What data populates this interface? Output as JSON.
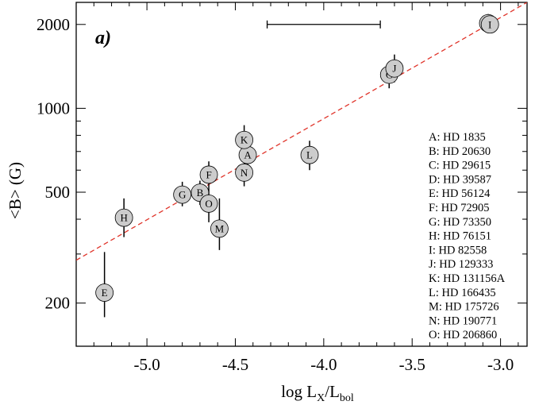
{
  "chart_data": {
    "type": "scatter",
    "title": "",
    "panel_label": "a)",
    "xlabel": {
      "main": "log L",
      "sub1": "X",
      "mid": "/L",
      "sub2": "bol"
    },
    "ylabel": "<B> (G)",
    "xlim": [
      -5.4,
      -2.85
    ],
    "ylim": [
      140,
      2400
    ],
    "yscale": "log",
    "x_ticks": [
      -5.0,
      -4.5,
      -4.0,
      -3.5,
      -3.0
    ],
    "x_tick_labels": [
      "-5.0",
      "-4.5",
      "-4.0",
      "-3.5",
      "-3.0"
    ],
    "y_ticks": [
      200,
      500,
      1000,
      2000
    ],
    "y_tick_labels": [
      "200",
      "500",
      "1000",
      "2000"
    ],
    "grid": false,
    "colors": {
      "points": "#cccccc",
      "fit": "#e0342a",
      "axes": "#000000"
    },
    "points": [
      {
        "id": "A",
        "x": -4.43,
        "y": 680,
        "yerr": [
          620,
          750
        ]
      },
      {
        "id": "B",
        "x": -4.7,
        "y": 498,
        "yerr": [
          450,
          550
        ]
      },
      {
        "id": "C",
        "x": -3.63,
        "y": 1320,
        "yerr": [
          1180,
          1460
        ]
      },
      {
        "id": "D",
        "x": -3.07,
        "y": 2020,
        "yerr": [
          1880,
          2180
        ]
      },
      {
        "id": "E",
        "x": -5.24,
        "y": 218,
        "yerr": [
          178,
          305
        ]
      },
      {
        "id": "F",
        "x": -4.65,
        "y": 578,
        "yerr": [
          520,
          645
        ]
      },
      {
        "id": "G",
        "x": -4.8,
        "y": 490,
        "yerr": [
          445,
          545
        ]
      },
      {
        "id": "H",
        "x": -5.13,
        "y": 405,
        "yerr": [
          345,
          475
        ]
      },
      {
        "id": "I",
        "x": -3.06,
        "y": 2000,
        "yerr": [
          1870,
          2140
        ]
      },
      {
        "id": "J",
        "x": -3.6,
        "y": 1390,
        "yerr": [
          1240,
          1560
        ]
      },
      {
        "id": "K",
        "x": -4.45,
        "y": 770,
        "yerr": [
          680,
          870
        ]
      },
      {
        "id": "L",
        "x": -4.08,
        "y": 680,
        "yerr": [
          600,
          765
        ]
      },
      {
        "id": "M",
        "x": -4.59,
        "y": 370,
        "yerr": [
          310,
          475
        ]
      },
      {
        "id": "N",
        "x": -4.45,
        "y": 588,
        "yerr": [
          525,
          655
        ]
      },
      {
        "id": "O",
        "x": -4.65,
        "y": 455,
        "yerr": [
          390,
          520
        ]
      }
    ],
    "fit_line": {
      "x": [
        -5.4,
        -2.85
      ],
      "y": [
        285,
        2400
      ]
    },
    "xerror_bar": {
      "x": [
        -4.32,
        -3.68
      ],
      "y": 2000
    },
    "legend": {
      "placement": "right",
      "entries": [
        "A: HD 1835",
        "B: HD 20630",
        "C: HD 29615",
        "D: HD 39587",
        "E: HD 56124",
        "F: HD 72905",
        "G: HD 73350",
        "H: HD 76151",
        "I: HD 82558",
        "J: HD 129333",
        "K: HD 131156A",
        "L: HD 166435",
        "M: HD 175726",
        "N: HD 190771",
        "O: HD 206860"
      ]
    }
  }
}
